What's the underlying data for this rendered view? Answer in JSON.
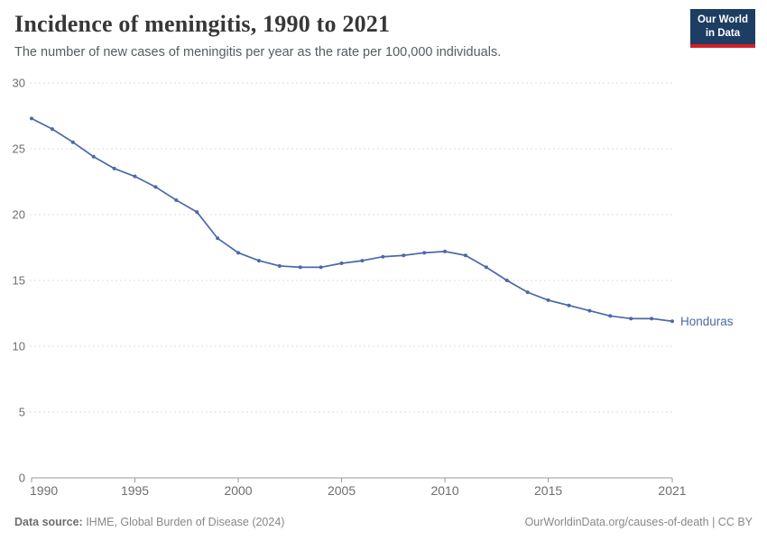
{
  "header": {
    "title": "Incidence of meningitis, 1990 to 2021",
    "subtitle": "The number of new cases of meningitis per year as the rate per 100,000 individuals."
  },
  "logo": {
    "line1": "Our World",
    "line2": "in Data",
    "bg_color": "#1d3d63",
    "accent_color": "#d21f26"
  },
  "chart_data": {
    "type": "line",
    "title": "Incidence of meningitis, 1990 to 2021",
    "xlabel": "",
    "ylabel": "",
    "entity_label": "Honduras",
    "x": [
      1990,
      1991,
      1992,
      1993,
      1994,
      1995,
      1996,
      1997,
      1998,
      1999,
      2000,
      2001,
      2002,
      2003,
      2004,
      2005,
      2006,
      2007,
      2008,
      2009,
      2010,
      2011,
      2012,
      2013,
      2014,
      2015,
      2016,
      2017,
      2018,
      2019,
      2020,
      2021
    ],
    "series": [
      {
        "name": "Honduras",
        "color": "#4a69a8",
        "values": [
          27.3,
          26.5,
          25.5,
          24.4,
          23.5,
          22.9,
          22.1,
          21.1,
          20.2,
          18.2,
          17.1,
          16.5,
          16.1,
          16.0,
          16.0,
          16.3,
          16.5,
          16.8,
          16.9,
          17.1,
          17.2,
          16.9,
          16.0,
          15.0,
          14.1,
          13.5,
          13.1,
          12.7,
          12.3,
          12.1,
          12.1,
          11.9
        ]
      }
    ],
    "ylim": [
      0,
      30
    ],
    "yticks": [
      0,
      5,
      10,
      15,
      20,
      25,
      30
    ],
    "xticks": [
      1990,
      1995,
      2000,
      2005,
      2010,
      2015,
      2021
    ],
    "grid": "horizontal-dashed",
    "legend": "line-end-label",
    "colors": {
      "grid": "#dcdcdc",
      "axis": "#999999",
      "tick_label": "#6e6e6e"
    }
  },
  "footer": {
    "source_label": "Data source:",
    "source_text": " IHME, Global Burden of Disease (2024)",
    "credit": "OurWorldinData.org/causes-of-death | CC BY"
  }
}
